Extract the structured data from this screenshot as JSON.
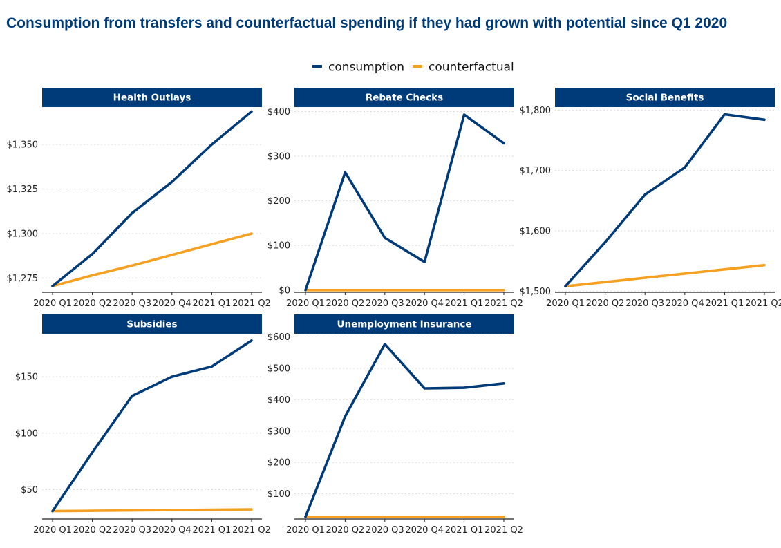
{
  "title": "Consumption from transfers and counterfactual spending if they had grown with potential since Q1 2020",
  "colors": {
    "consumption": "#003b79",
    "counterfactual": "#f5a020",
    "strip": "#003b79",
    "grid": "#dcdcdc"
  },
  "chart_data": {
    "type": "line",
    "title": "Consumption from transfers and counterfactual spending if they had grown with potential since Q1 2020",
    "legend": {
      "placement": "top-center",
      "entries": [
        "consumption",
        "counterfactual"
      ]
    },
    "grid": "horizontal dotted",
    "categories": [
      "2020 Q1",
      "2020 Q2",
      "2020 Q3",
      "2020 Q4",
      "2021 Q1",
      "2021 Q2"
    ],
    "panels": [
      {
        "title": "Health Outlays",
        "ylim": [
          1267,
          1371
        ],
        "yticks": [
          1275,
          1300,
          1325,
          1350
        ],
        "ytick_labels": [
          "$1,275",
          "$1,300",
          "$1,325",
          "$1,350"
        ],
        "series": [
          {
            "name": "consumption",
            "values": [
              1270.5,
              1288.5,
              1311.5,
              1329,
              1350,
              1368.5
            ]
          },
          {
            "name": "counterfactual",
            "values": [
              1270.5,
              1276.5,
              1282,
              1288,
              1294,
              1300
            ]
          }
        ]
      },
      {
        "title": "Rebate Checks",
        "ylim": [
          -5,
          410
        ],
        "yticks": [
          0,
          100,
          200,
          300,
          400
        ],
        "ytick_labels": [
          "$0",
          "$100",
          "$200",
          "$300",
          "$400"
        ],
        "series": [
          {
            "name": "consumption",
            "values": [
              0,
              264,
              117,
              63,
              393,
              329
            ]
          },
          {
            "name": "counterfactual",
            "values": [
              0,
              0,
              0,
              0,
              0,
              0
            ]
          }
        ]
      },
      {
        "title": "Social Benefits",
        "ylim": [
          1498,
          1805
        ],
        "yticks": [
          1500,
          1600,
          1700,
          1800
        ],
        "ytick_labels": [
          "$1,500",
          "$1,600",
          "$1,700",
          "$1,800"
        ],
        "series": [
          {
            "name": "consumption",
            "values": [
              1508,
              1581,
              1660,
              1705,
              1793,
              1784
            ]
          },
          {
            "name": "counterfactual",
            "values": [
              1508,
              1515,
              1522,
              1529,
              1536,
              1543
            ]
          }
        ]
      },
      {
        "title": "Subsidies",
        "ylim": [
          24,
          188
        ],
        "yticks": [
          50,
          100,
          150
        ],
        "ytick_labels": [
          "$50",
          "$100",
          "$150"
        ],
        "series": [
          {
            "name": "consumption",
            "values": [
              31,
              83,
              133,
              150,
              159,
              182
            ]
          },
          {
            "name": "counterfactual",
            "values": [
              31,
              31.3,
              31.6,
              31.9,
              32.2,
              32.5
            ]
          }
        ]
      },
      {
        "title": "Unemployment Insurance",
        "ylim": [
          20,
          610
        ],
        "yticks": [
          100,
          200,
          300,
          400,
          500,
          600
        ],
        "ytick_labels": [
          "$100",
          "$200",
          "$300",
          "$400",
          "$500",
          "$600"
        ],
        "series": [
          {
            "name": "consumption",
            "values": [
              27,
              347,
              577,
              436,
              438,
              452
            ]
          },
          {
            "name": "counterfactual",
            "values": [
              27,
              27,
              27,
              27,
              27,
              27
            ]
          }
        ]
      }
    ]
  }
}
